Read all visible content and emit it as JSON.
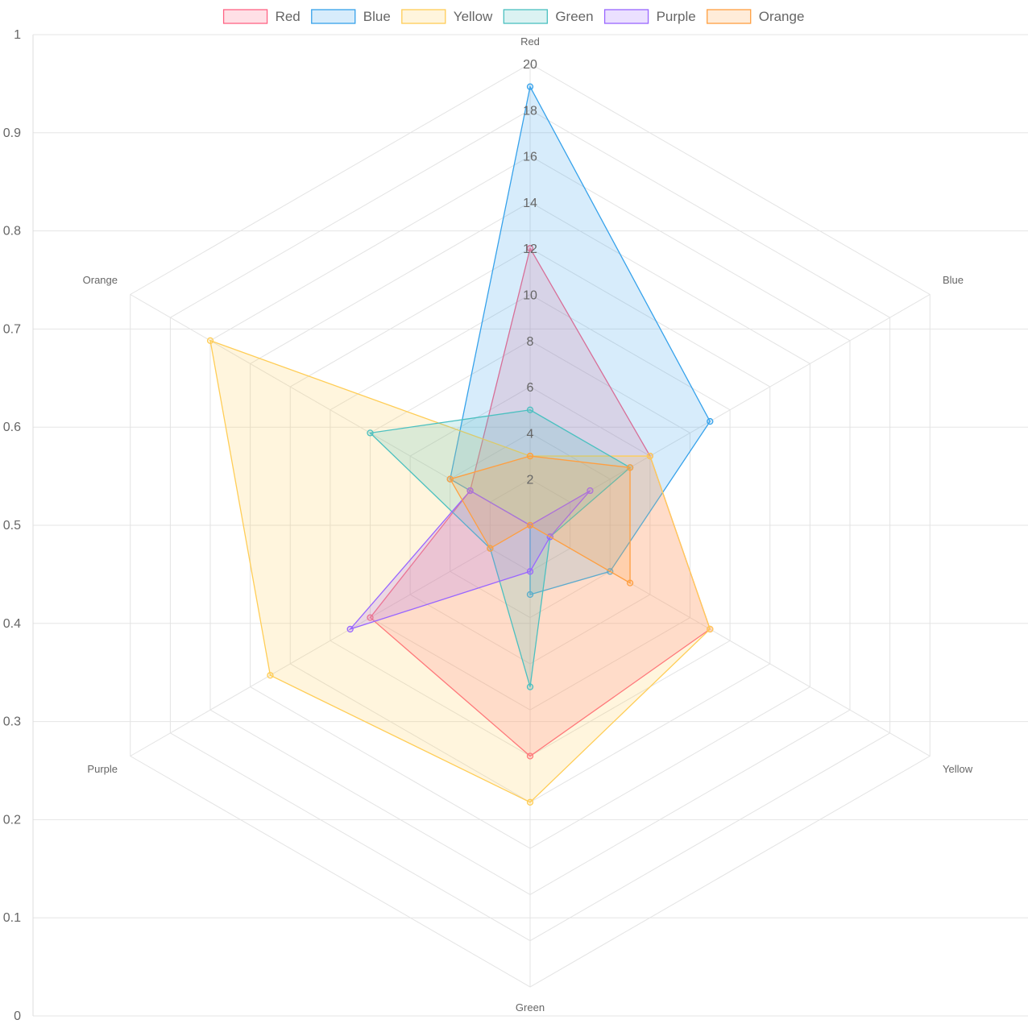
{
  "chart_data": {
    "type": "radar",
    "labels": [
      "Red",
      "Blue",
      "Yellow",
      "Green",
      "Purple",
      "Orange"
    ],
    "r_ticks": [
      "2",
      "4",
      "6",
      "8",
      "10",
      "12",
      "14",
      "16",
      "18",
      "20"
    ],
    "r_max": 20,
    "y_ticks": [
      "0",
      "0.1",
      "0.2",
      "0.3",
      "0.4",
      "0.5",
      "0.6",
      "0.7",
      "0.8",
      "0.9",
      "1"
    ],
    "y_range": [
      0,
      1
    ],
    "legend_position": "top",
    "grid": true,
    "series": [
      {
        "name": "Red",
        "values": [
          12,
          6,
          9,
          10,
          8,
          3
        ],
        "color": "#ff6384",
        "fill": "rgba(255,99,132,0.2)"
      },
      {
        "name": "Blue",
        "values": [
          19,
          9,
          4,
          3,
          0,
          4
        ],
        "color": "#36a2eb",
        "fill": "rgba(54,162,235,0.2)"
      },
      {
        "name": "Yellow",
        "values": [
          3,
          6,
          9,
          12,
          13,
          16
        ],
        "color": "#ffcd56",
        "fill": "rgba(255,205,86,0.2)"
      },
      {
        "name": "Green",
        "values": [
          5,
          5,
          1,
          7,
          2,
          8
        ],
        "color": "#4bc0c0",
        "fill": "rgba(75,192,192,0.2)"
      },
      {
        "name": "Purple",
        "values": [
          0,
          3,
          1,
          2,
          9,
          3
        ],
        "color": "#9966ff",
        "fill": "rgba(153,102,255,0.2)"
      },
      {
        "name": "Orange",
        "values": [
          3,
          5,
          5,
          0,
          2,
          4
        ],
        "color": "#ff9f40",
        "fill": "rgba(255,159,64,0.2)"
      }
    ]
  }
}
